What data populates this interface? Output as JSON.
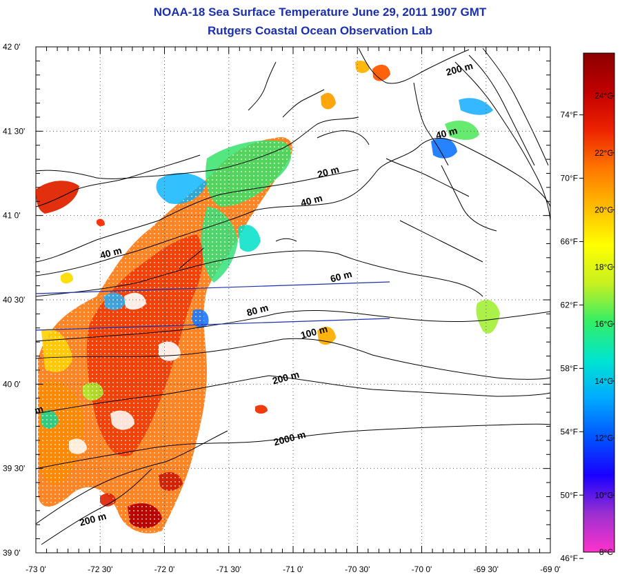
{
  "title": "NOAA-18 Sea Surface Temperature June 29, 2011 1907 GMT",
  "subtitle": "Rutgers Coastal Ocean Observation Lab",
  "map": {
    "lon_range": [
      -73.0,
      -69.0
    ],
    "lat_range": [
      39.0,
      42.0
    ],
    "lon_ticks": [
      {
        "value": -73.0,
        "label": "-73 0'"
      },
      {
        "value": -72.5,
        "label": "-72 30'"
      },
      {
        "value": -72.0,
        "label": "-72 0'"
      },
      {
        "value": -71.5,
        "label": "-71 30'"
      },
      {
        "value": -71.0,
        "label": "-71 0'"
      },
      {
        "value": -70.5,
        "label": "-70 30'"
      },
      {
        "value": -70.0,
        "label": "-70 0'"
      },
      {
        "value": -69.5,
        "label": "-69 30'"
      },
      {
        "value": -69.0,
        "label": "-69 0'"
      }
    ],
    "lat_ticks": [
      {
        "value": 42.0,
        "label": "42 0'"
      },
      {
        "value": 41.5,
        "label": "41 30'"
      },
      {
        "value": 41.0,
        "label": "41 0'"
      },
      {
        "value": 40.5,
        "label": "40 30'"
      },
      {
        "value": 40.0,
        "label": "40 0'"
      },
      {
        "value": 39.5,
        "label": "39 30'"
      },
      {
        "value": 39.0,
        "label": "39 0'"
      }
    ],
    "grid": "dotted",
    "contour_labels": [
      {
        "text": "20 m",
        "lon": -70.72,
        "lat": 41.24
      },
      {
        "text": "40 m",
        "lon": -70.85,
        "lat": 41.07
      },
      {
        "text": "40 m",
        "lon": -72.41,
        "lat": 40.76
      },
      {
        "text": "60 m",
        "lon": -70.62,
        "lat": 40.62
      },
      {
        "text": "80 m",
        "lon": -71.27,
        "lat": 40.42
      },
      {
        "text": "100 m",
        "lon": -70.83,
        "lat": 40.29
      },
      {
        "text": "200 m",
        "lon": -71.05,
        "lat": 40.02
      },
      {
        "text": "2000 m",
        "lon": -71.02,
        "lat": 39.66
      },
      {
        "text": "200 m",
        "lon": -72.55,
        "lat": 39.18
      },
      {
        "text": "200 m",
        "lon": -69.7,
        "lat": 41.85
      },
      {
        "text": "40 m",
        "lon": -69.8,
        "lat": 41.47
      },
      {
        "text": "m",
        "lon": -72.97,
        "lat": 39.83
      }
    ]
  },
  "colorbar": {
    "celsius_ticks": [
      {
        "value": 24,
        "label": "24°C"
      },
      {
        "value": 22,
        "label": "22°C"
      },
      {
        "value": 20,
        "label": "20°C"
      },
      {
        "value": 18,
        "label": "18°C"
      },
      {
        "value": 16,
        "label": "16°C"
      },
      {
        "value": 14,
        "label": "14°C"
      },
      {
        "value": 12,
        "label": "12°C"
      },
      {
        "value": 10,
        "label": "10°C"
      },
      {
        "value": 8,
        "label": "8°C"
      }
    ],
    "fahrenheit_ticks": [
      {
        "value": 74,
        "label": "74°F"
      },
      {
        "value": 70,
        "label": "70°F"
      },
      {
        "value": 66,
        "label": "66°F"
      },
      {
        "value": 62,
        "label": "62°F"
      },
      {
        "value": 58,
        "label": "58°F"
      },
      {
        "value": 54,
        "label": "54°F"
      },
      {
        "value": 50,
        "label": "50°F"
      },
      {
        "value": 46,
        "label": "46°F"
      }
    ],
    "range_c": [
      8,
      25.5
    ],
    "colors": [
      "#ff33cc",
      "#9b2fd0",
      "#1a00ff",
      "#0055ff",
      "#00aaff",
      "#00e5d0",
      "#33ee66",
      "#c8f020",
      "#ffff00",
      "#ffbb00",
      "#ff7700",
      "#ee2200",
      "#c00000",
      "#8b0000"
    ]
  }
}
